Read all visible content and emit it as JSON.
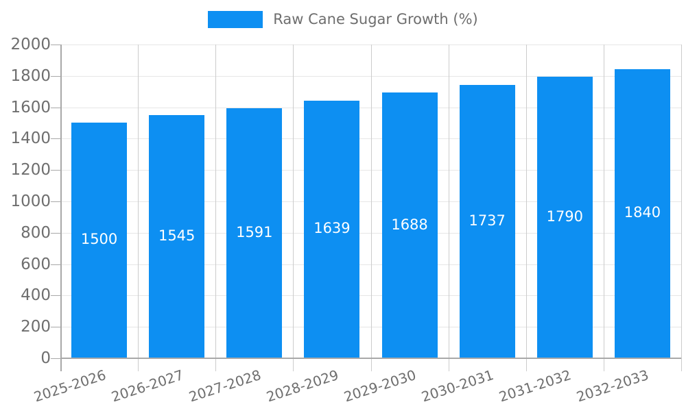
{
  "chart_data": {
    "type": "bar",
    "title": "Raw Cane Sugar Growth (%)",
    "categories": [
      "2025-2026",
      "2026-2027",
      "2027-2028",
      "2028-2029",
      "2029-2030",
      "2030-2031",
      "2031-2032",
      "2032-2033"
    ],
    "values": [
      1500,
      1545,
      1591,
      1639,
      1688,
      1737,
      1790,
      1840
    ],
    "value_labels": [
      "1500",
      "1545",
      "1591",
      "1639",
      "1688",
      "1737",
      "1790",
      "1840"
    ],
    "yticks": [
      "0",
      "200",
      "400",
      "600",
      "800",
      "1000",
      "1200",
      "1400",
      "1600",
      "1800",
      "2000"
    ],
    "ylim": [
      0,
      2000
    ],
    "ytick_step": 200,
    "xlabel": "",
    "ylabel": "",
    "legend_position": "top",
    "grid": "horizontal and vertical gridlines on",
    "bar_color": "#0d8ff2",
    "value_label_color": "#ffffff",
    "axis_text_color": "#6e6e6e",
    "h_gridline_color": "#e6e6e6",
    "v_gridline_color": "#cccccc",
    "axis_line_color": "#a8a8a8",
    "background_color": "#ffffff"
  }
}
